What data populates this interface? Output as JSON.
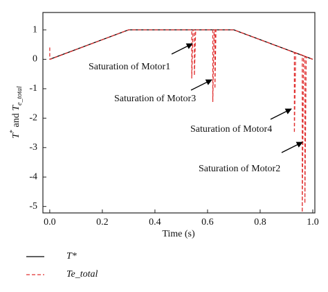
{
  "chart_data": {
    "type": "line",
    "xlabel": "Time (s)",
    "ylabel": [
      "T",
      "*",
      " and ",
      "T",
      "e_total"
    ],
    "xlim": [
      -0.026,
      1.008
    ],
    "ylim": [
      -5.22,
      1.59
    ],
    "xticks": [
      {
        "value": 0,
        "label": "0.0"
      },
      0.2,
      0.4,
      0.6,
      0.8,
      {
        "value": 1,
        "label": "1.0"
      }
    ],
    "yticks": [
      1,
      0,
      -1,
      -2,
      -3,
      -4,
      -5
    ],
    "series": [
      {
        "name": "T*",
        "color": "#000000",
        "dashed": false,
        "x": [
          0,
          0.3,
          0.7,
          1.0
        ],
        "values": [
          0,
          1,
          1,
          0
        ]
      },
      {
        "name": "Te_total",
        "color": "#e03030",
        "dashed": true,
        "x": [
          0,
          0,
          0.002,
          0.3,
          0.54,
          0.54,
          0.545,
          0.55,
          0.55,
          0.555,
          0.62,
          0.62,
          0.625,
          0.628,
          0.628,
          0.632,
          0.7,
          0.93,
          0.93,
          0.935,
          0.96,
          0.96,
          0.965,
          0.97,
          0.97,
          0.975,
          1.0
        ],
        "values": [
          0.4,
          0,
          0,
          1,
          1,
          -0.65,
          1,
          1,
          -0.55,
          1,
          1,
          -1.45,
          1,
          1,
          -1.0,
          1,
          1,
          0.23,
          -2.5,
          0.22,
          0.14,
          -5.2,
          0.12,
          0.1,
          -4.9,
          0.08,
          0
        ]
      }
    ],
    "annotations": [
      "Saturation of Motor1",
      "Saturation of Motor3",
      "Saturation of Motor4",
      "Saturation of Motor2"
    ]
  }
}
